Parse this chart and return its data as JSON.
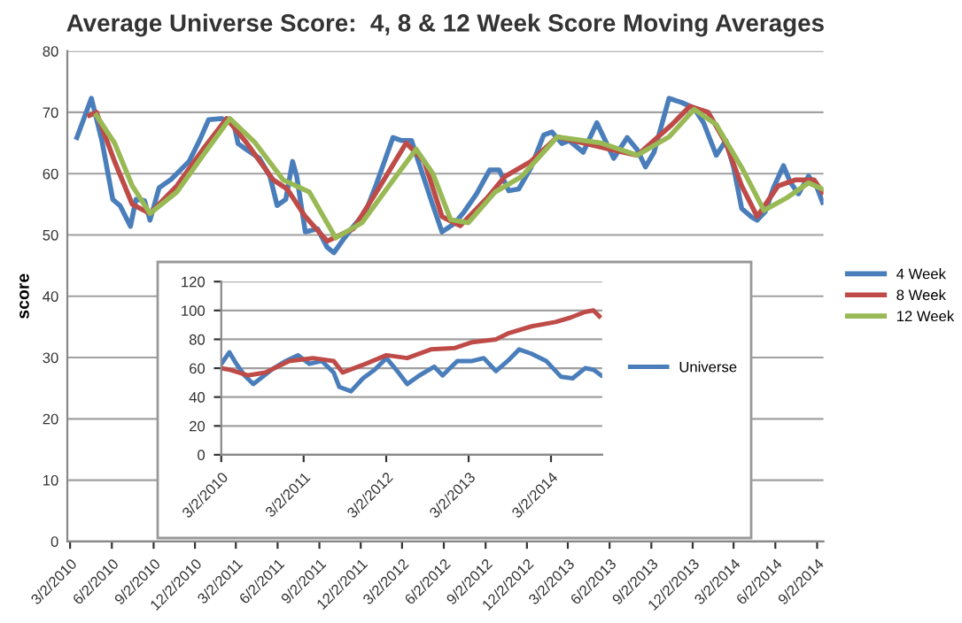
{
  "chart_data": [
    {
      "type": "line",
      "title": "Average Universe Score:  4, 8 & 12 Week Score Moving Averages",
      "ylabel": "score",
      "ylim": [
        0,
        80
      ],
      "yticks": [
        0,
        10,
        20,
        30,
        40,
        50,
        60,
        70,
        80
      ],
      "xlim": [
        "2010-02-24",
        "2014-09-16"
      ],
      "xticks": [
        {
          "value": "2010-03-02",
          "label": "3/2/2010"
        },
        {
          "value": "2010-06-02",
          "label": "6/2/2010"
        },
        {
          "value": "2010-09-02",
          "label": "9/2/2010"
        },
        {
          "value": "2010-12-02",
          "label": "12/2/2010"
        },
        {
          "value": "2011-03-02",
          "label": "3/2/2011"
        },
        {
          "value": "2011-06-02",
          "label": "6/2/2011"
        },
        {
          "value": "2011-09-02",
          "label": "9/2/2011"
        },
        {
          "value": "2011-12-02",
          "label": "12/2/2011"
        },
        {
          "value": "2012-03-02",
          "label": "3/2/2012"
        },
        {
          "value": "2012-06-02",
          "label": "6/2/2012"
        },
        {
          "value": "2012-09-02",
          "label": "9/2/2012"
        },
        {
          "value": "2012-12-02",
          "label": "12/2/2012"
        },
        {
          "value": "2013-03-02",
          "label": "3/2/2013"
        },
        {
          "value": "2013-06-02",
          "label": "6/2/2013"
        },
        {
          "value": "2013-09-02",
          "label": "9/2/2013"
        },
        {
          "value": "2013-12-02",
          "label": "12/2/2013"
        },
        {
          "value": "2014-03-02",
          "label": "3/2/2014"
        },
        {
          "value": "2014-06-02",
          "label": "6/2/2014"
        },
        {
          "value": "2014-09-02",
          "label": "9/2/2014"
        }
      ],
      "grid": "y",
      "legend": "right",
      "marker": "none",
      "line_style": "solid",
      "series": [
        {
          "name": "4 Week",
          "color": "#4a7ebb",
          "x": [
            "2010-03-17",
            "2010-04-18",
            "2010-05-11",
            "2010-06-04",
            "2010-06-20",
            "2010-07-13",
            "2010-07-25",
            "2010-08-13",
            "2010-08-25",
            "2010-09-14",
            "2010-10-11",
            "2010-11-19",
            "2010-12-12",
            "2011-01-01",
            "2011-01-29",
            "2011-02-25",
            "2011-03-07",
            "2011-03-26",
            "2011-04-23",
            "2011-05-16",
            "2011-06-01",
            "2011-06-20",
            "2011-07-05",
            "2011-07-14",
            "2011-08-02",
            "2011-08-29",
            "2011-09-19",
            "2011-10-04",
            "2011-10-27",
            "2011-11-16",
            "2011-12-13",
            "2012-01-05",
            "2012-02-11",
            "2012-03-01",
            "2012-03-23",
            "2012-04-11",
            "2012-05-09",
            "2012-05-29",
            "2012-06-26",
            "2012-07-17",
            "2012-08-13",
            "2012-09-11",
            "2012-10-02",
            "2012-10-23",
            "2012-11-14",
            "2012-12-11",
            "2013-01-08",
            "2013-01-26",
            "2013-02-17",
            "2013-03-05",
            "2013-04-05",
            "2013-05-05",
            "2013-06-11",
            "2013-07-11",
            "2013-08-02",
            "2013-08-20",
            "2013-09-08",
            "2013-10-11",
            "2013-11-08",
            "2013-12-05",
            "2013-12-26",
            "2014-01-23",
            "2014-02-13",
            "2014-03-02",
            "2014-03-20",
            "2014-04-11",
            "2014-04-23",
            "2014-05-11",
            "2014-05-29",
            "2014-06-20",
            "2014-07-05",
            "2014-07-23",
            "2014-08-14",
            "2014-09-02",
            "2014-09-14"
          ],
          "values": [
            65.9,
            72.3,
            65.4,
            55.8,
            54.8,
            51.4,
            55.8,
            55.6,
            52.4,
            57.7,
            59.1,
            62,
            65.4,
            68.8,
            69,
            68.3,
            64.9,
            63.9,
            62.5,
            59.6,
            54.8,
            55.8,
            62,
            59.6,
            50.5,
            51,
            48,
            47.1,
            49.5,
            51.4,
            53.8,
            58.2,
            65.9,
            65.4,
            65.4,
            61.1,
            54.8,
            50.5,
            51.9,
            53.8,
            56.7,
            60.6,
            60.6,
            57.2,
            57.5,
            61,
            66.3,
            66.8,
            64.9,
            65.4,
            63.5,
            68.3,
            62.5,
            65.9,
            63.9,
            61.1,
            63.5,
            72.3,
            71.6,
            70.7,
            68.3,
            63,
            65.4,
            61.1,
            54.3,
            52.9,
            52.4,
            53.8,
            57.7,
            61.3,
            58.6,
            56.7,
            59.6,
            57.7,
            55.3
          ]
        },
        {
          "name": "8 Week",
          "color": "#be4b48",
          "x": [
            "2010-04-14",
            "2010-04-29",
            "2010-06-08",
            "2010-07-17",
            "2010-08-25",
            "2010-10-23",
            "2010-12-20",
            "2011-02-10",
            "2011-03-26",
            "2011-05-23",
            "2011-06-23",
            "2011-08-02",
            "2011-09-19",
            "2011-11-16",
            "2012-01-14",
            "2012-03-11",
            "2012-04-20",
            "2012-05-29",
            "2012-07-08",
            "2012-09-05",
            "2012-10-14",
            "2012-12-11",
            "2013-02-07",
            "2013-04-05",
            "2013-06-02",
            "2013-08-02",
            "2013-10-17",
            "2013-11-26",
            "2014-01-05",
            "2014-02-13",
            "2014-03-20",
            "2014-04-23",
            "2014-06-08",
            "2014-07-17",
            "2014-08-26",
            "2014-09-14"
          ],
          "values": [
            69.5,
            70,
            62,
            55,
            53.5,
            58,
            64,
            69,
            65,
            59,
            57.5,
            53,
            49,
            51,
            58,
            65,
            62,
            53,
            51.5,
            56,
            59.5,
            62,
            66,
            65,
            64,
            63,
            68,
            71,
            70,
            65,
            58,
            53,
            58,
            59,
            59,
            57
          ]
        },
        {
          "name": "12 Week",
          "color": "#98b954",
          "x": [
            "2010-04-29",
            "2010-06-08",
            "2010-07-17",
            "2010-08-25",
            "2010-10-23",
            "2010-12-20",
            "2011-02-17",
            "2011-04-14",
            "2011-06-14",
            "2011-08-11",
            "2011-10-08",
            "2011-12-05",
            "2012-02-02",
            "2012-04-02",
            "2012-05-09",
            "2012-06-17",
            "2012-07-26",
            "2012-09-23",
            "2012-11-20",
            "2013-02-07",
            "2013-05-14",
            "2013-08-02",
            "2013-10-11",
            "2013-12-05",
            "2014-01-23",
            "2014-03-20",
            "2014-05-08",
            "2014-06-26",
            "2014-08-14",
            "2014-09-14"
          ],
          "values": [
            69.5,
            65,
            58,
            53.5,
            57,
            63,
            69,
            65,
            59,
            57,
            49.5,
            52,
            58,
            64,
            60,
            52.5,
            52,
            57,
            59.5,
            66,
            65,
            63,
            66,
            70.5,
            68,
            61,
            54,
            56,
            58.5,
            57.5
          ]
        }
      ]
    },
    {
      "type": "line",
      "ylim": [
        0,
        120
      ],
      "yticks": [
        0,
        20,
        40,
        60,
        80,
        100,
        120
      ],
      "xlim": [
        "2010-03-02",
        "2014-10-15"
      ],
      "xticks": [
        {
          "value": "2010-03-02",
          "label": "3/2/2010"
        },
        {
          "value": "2011-03-02",
          "label": "3/2/2011"
        },
        {
          "value": "2012-03-02",
          "label": "3/2/2012"
        },
        {
          "value": "2013-03-02",
          "label": "3/2/2013"
        },
        {
          "value": "2014-03-02",
          "label": "3/2/2014"
        }
      ],
      "grid": "y",
      "legend": "right",
      "marker": "none",
      "line_style": "solid",
      "series": [
        {
          "name": "Universe",
          "color": "#4a7ebb",
          "x": [
            "2010-03-02",
            "2010-04-07",
            "2010-05-08",
            "2010-06-13",
            "2010-07-22",
            "2010-09-01",
            "2010-10-11",
            "2010-12-13",
            "2011-02-05",
            "2011-03-28",
            "2011-05-22",
            "2011-07-13",
            "2011-08-07",
            "2011-09-28",
            "2011-11-20",
            "2012-01-11",
            "2012-03-03",
            "2012-04-25",
            "2012-06-03",
            "2012-07-27",
            "2012-10-01",
            "2012-11-07",
            "2013-01-11",
            "2013-03-18",
            "2013-05-08",
            "2013-07-01",
            "2013-08-22",
            "2013-10-12",
            "2013-12-06",
            "2014-02-09",
            "2014-04-16",
            "2014-06-06",
            "2014-07-31",
            "2014-09-06",
            "2014-10-11"
          ],
          "values": [
            63,
            71,
            63,
            55,
            49,
            54,
            59,
            65,
            69,
            63,
            65,
            57,
            47,
            44,
            53,
            59,
            67,
            57,
            49,
            55,
            61,
            55,
            65,
            65,
            67,
            58,
            65,
            73,
            70,
            65,
            54,
            53,
            60,
            59,
            55
          ]
        },
        {
          "color": "#be4b48",
          "x": [
            "2010-03-02",
            "2010-04-07",
            "2010-06-27",
            "2010-09-13",
            "2010-12-28",
            "2011-04-12",
            "2011-07-13",
            "2011-08-22",
            "2011-12-02",
            "2012-03-03",
            "2012-06-03",
            "2012-09-16",
            "2013-01-01",
            "2013-03-18",
            "2013-07-01",
            "2013-08-22",
            "2013-12-06",
            "2014-03-22",
            "2014-05-26",
            "2014-07-31",
            "2014-09-06",
            "2014-10-02"
          ],
          "values": [
            60,
            59,
            55,
            57,
            65,
            67,
            65,
            57,
            63,
            69,
            67,
            73,
            74,
            78,
            80,
            84,
            89,
            92,
            95,
            99,
            100,
            96
          ]
        }
      ]
    }
  ]
}
